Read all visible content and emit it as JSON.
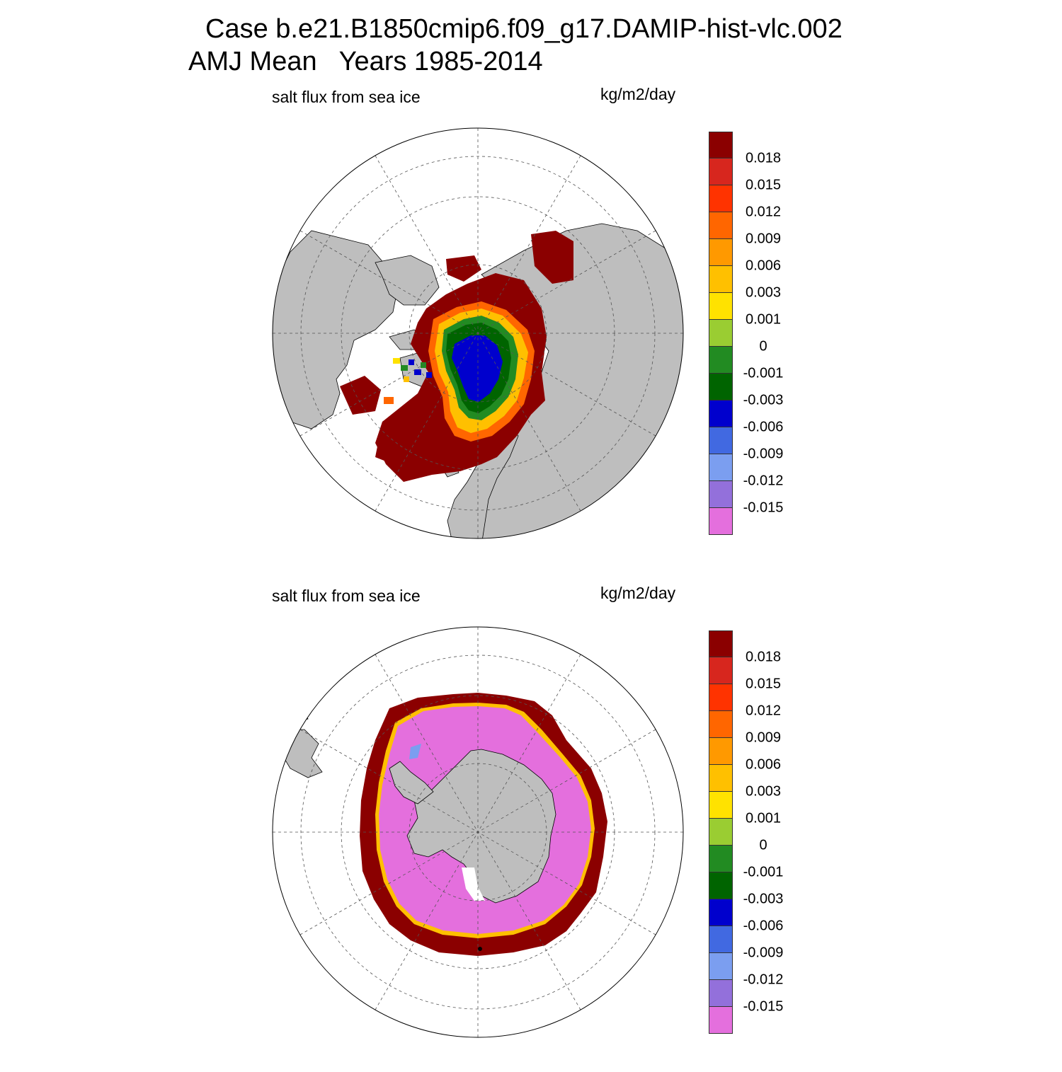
{
  "header": {
    "case_title": "Case b.e21.B1850cmip6.f09_g17.DAMIP-hist-vlc.002",
    "period_title": "AMJ Mean   Years 1985-2014"
  },
  "panels": [
    {
      "hemisphere": "north",
      "variable_label": "salt flux from sea ice",
      "units": "kg/m2/day"
    },
    {
      "hemisphere": "south",
      "variable_label": "salt flux from sea ice",
      "units": "kg/m2/day"
    }
  ],
  "colorbar": {
    "tick_labels": [
      "0.018",
      "0.015",
      "0.012",
      "0.009",
      "0.006",
      "0.003",
      "0.001",
      "0",
      "-0.001",
      "-0.003",
      "-0.006",
      "-0.009",
      "-0.012",
      "-0.015"
    ],
    "colors": [
      "#8b0000",
      "#d7261e",
      "#ff3300",
      "#ff6600",
      "#ff9900",
      "#ffc000",
      "#ffe200",
      "#9acd32",
      "#228b22",
      "#006400",
      "#0000cd",
      "#4169e1",
      "#7b9ef0",
      "#9370db",
      "#e46fdd"
    ]
  },
  "map_colors": {
    "land": "#bebebe",
    "ocean_no_ice": "#ffffff",
    "grid": "#555555"
  }
}
